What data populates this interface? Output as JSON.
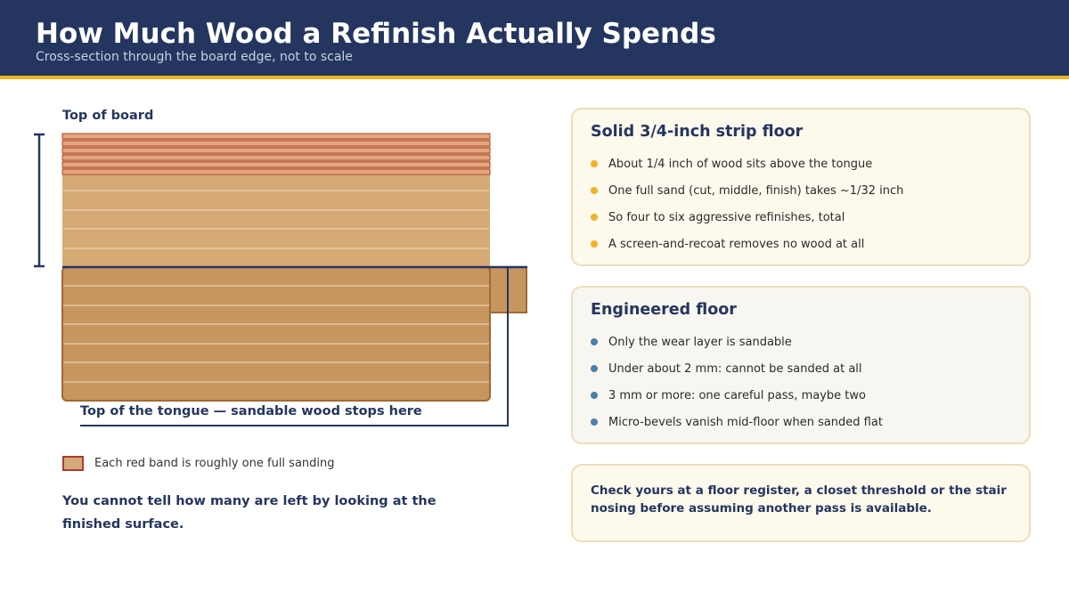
{
  "header": {
    "title": "How Much Wood a Refinish Actually Spends",
    "subtitle": "Cross-section through the board edge, not to scale"
  },
  "diagram": {
    "top_label": "Top of board",
    "tongue_label": "Top of the tongue — sandable wood stops here",
    "sanding_bands": 6,
    "colors": {
      "wood_top": "#d5aa74",
      "wood_lower": "#c6965e",
      "band_fill": "#e3a67f",
      "band_stroke": "#b0452f",
      "wood_edge": "#a06a38",
      "navy": "#243660"
    }
  },
  "legend": {
    "text": "Each red band is roughly one full sanding"
  },
  "note": "You cannot tell how many are left by looking at the finished surface.",
  "cards": {
    "solid": {
      "title": "Solid 3/4-inch strip floor",
      "items": [
        "About 1/4 inch of wood sits above the tongue",
        "One full sand (cut, middle, finish) takes ~1/32 inch",
        "So four to six aggressive refinishes, total",
        "A screen-and-recoat removes no wood at all"
      ]
    },
    "engineered": {
      "title": "Engineered floor",
      "items": [
        "Only the wear layer is sandable",
        "Under about 2 mm: cannot be sanded at all",
        "3 mm or more: one careful pass, maybe two",
        "Micro-bevels vanish mid-floor when sanded flat"
      ]
    },
    "tip": {
      "text": "Check yours at a floor register, a closet threshold or the stair nosing before assuming another pass is available."
    }
  },
  "colors": {
    "header_bg": "#243660",
    "accent": "#f0b323",
    "engineered_bullet": "#4a7fa8",
    "card_border": "#ecdfb6"
  }
}
